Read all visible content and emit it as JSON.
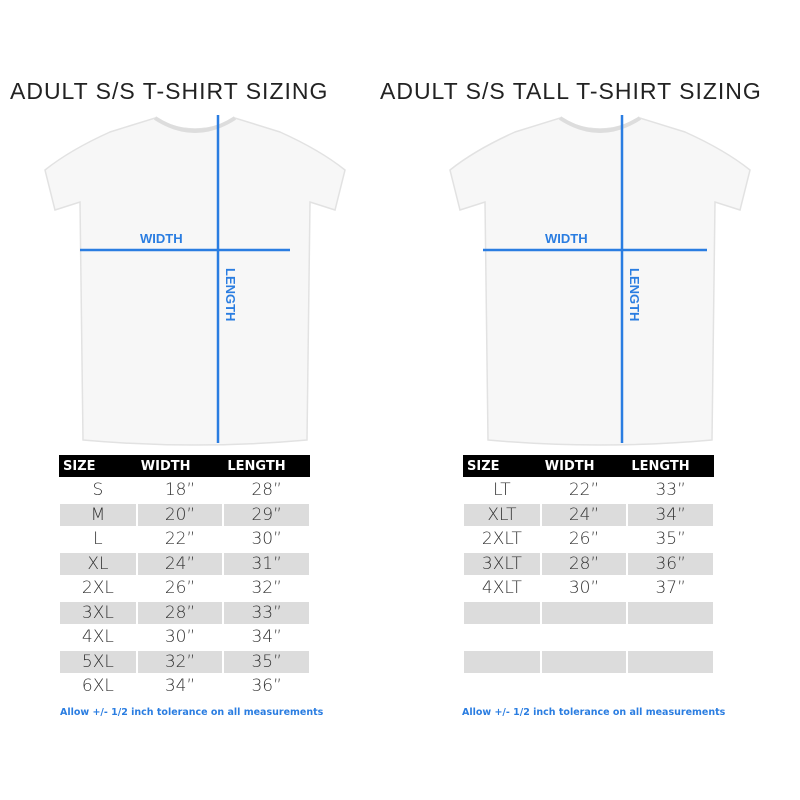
{
  "colors": {
    "accent": "#2a7de1",
    "header": "#000000",
    "stripe": "#dcdcdc"
  },
  "charts": [
    {
      "title": "ADULT S/S T-SHIRT SIZING",
      "width_label": "WIDTH",
      "length_label": "LENGTH",
      "headers": [
        "SIZE",
        "WIDTH",
        "LENGTH"
      ],
      "rows": [
        [
          "S",
          "18”",
          "28”"
        ],
        [
          "M",
          "20”",
          "29”"
        ],
        [
          "L",
          "22”",
          "30”"
        ],
        [
          "XL",
          "24”",
          "31”"
        ],
        [
          "2XL",
          "26”",
          "32”"
        ],
        [
          "3XL",
          "28”",
          "33”"
        ],
        [
          "4XL",
          "30”",
          "34”"
        ],
        [
          "5XL",
          "32”",
          "35”"
        ],
        [
          "6XL",
          "34”",
          "36”"
        ]
      ],
      "note": "Allow +/- 1/2 inch tolerance on all measurements"
    },
    {
      "title": "ADULT S/S TALL T-SHIRT SIZING",
      "width_label": "WIDTH",
      "length_label": "LENGTH",
      "headers": [
        "SIZE",
        "WIDTH",
        "LENGTH"
      ],
      "rows": [
        [
          "LT",
          "22”",
          "33”"
        ],
        [
          "XLT",
          "24”",
          "34”"
        ],
        [
          "2XLT",
          "26”",
          "35”"
        ],
        [
          "3XLT",
          "28”",
          "36”"
        ],
        [
          "4XLT",
          "30”",
          "37”"
        ],
        [
          "",
          "",
          ""
        ],
        [
          "",
          "",
          ""
        ],
        [
          "",
          "",
          ""
        ],
        [
          "",
          "",
          ""
        ]
      ],
      "note": "Allow +/- 1/2 inch tolerance on all measurements"
    }
  ]
}
